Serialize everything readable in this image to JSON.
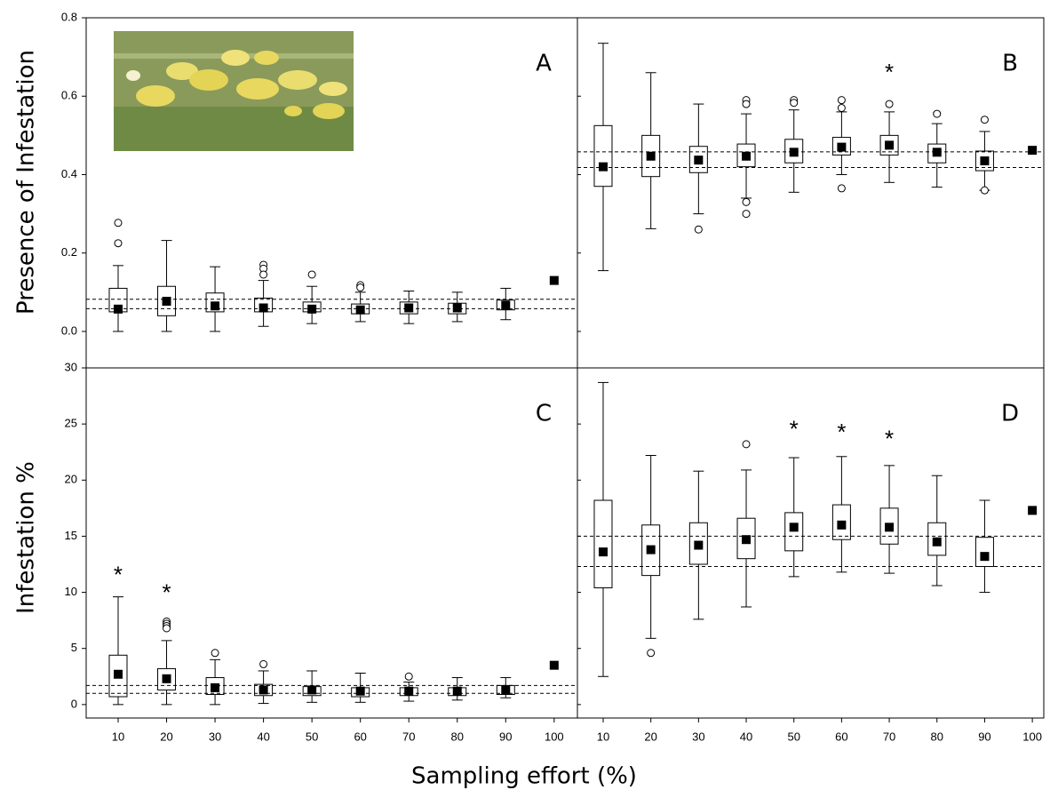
{
  "labels": {
    "x": "Sampling effort (%)",
    "y_top": "Presence of Infestation",
    "y_bottom": "Infestation %"
  },
  "chart_data": [
    {
      "type": "box",
      "title": "A",
      "xlim": [
        3.4,
        104.8
      ],
      "ylim": [
        -0.093,
        0.8
      ],
      "yticks": [
        {
          "value": 0,
          "label": "0.0"
        },
        0.2,
        0.4,
        0.6,
        0.8
      ],
      "x": [
        10,
        20,
        30,
        40,
        50,
        60,
        70,
        80,
        90,
        100
      ],
      "boxes": [
        {
          "min": 0,
          "q1": 0.05,
          "q3": 0.11,
          "max": 0.168,
          "mean": 0.057,
          "outliers": [
            0.277,
            0.225
          ]
        },
        {
          "min": 0,
          "q1": 0.04,
          "q3": 0.115,
          "max": 0.232,
          "mean": 0.077,
          "outliers": []
        },
        {
          "min": 0,
          "q1": 0.05,
          "q3": 0.098,
          "max": 0.165,
          "mean": 0.065,
          "outliers": []
        },
        {
          "min": 0.013,
          "q1": 0.05,
          "q3": 0.085,
          "max": 0.13,
          "mean": 0.06,
          "outliers": [
            0.17,
            0.16,
            0.145
          ]
        },
        {
          "min": 0.02,
          "q1": 0.05,
          "q3": 0.075,
          "max": 0.115,
          "mean": 0.057,
          "outliers": [
            0.145
          ]
        },
        {
          "min": 0.025,
          "q1": 0.045,
          "q3": 0.07,
          "max": 0.1,
          "mean": 0.055,
          "outliers": [
            0.118,
            0.112
          ]
        },
        {
          "min": 0.02,
          "q1": 0.045,
          "q3": 0.075,
          "max": 0.103,
          "mean": 0.06,
          "outliers": []
        },
        {
          "min": 0.025,
          "q1": 0.045,
          "q3": 0.072,
          "max": 0.1,
          "mean": 0.06,
          "outliers": []
        },
        {
          "min": 0.03,
          "q1": 0.055,
          "q3": 0.08,
          "max": 0.11,
          "mean": 0.067,
          "outliers": []
        },
        {
          "mean": 0.13
        }
      ],
      "ref_lines": [
        0.058,
        0.082
      ],
      "annotations": []
    },
    {
      "type": "box",
      "title": "B",
      "xlim": [
        4.6,
        102.4
      ],
      "ylim": [
        -0.093,
        0.8
      ],
      "yticks": [
        0,
        0.2,
        0.4,
        0.6,
        0.8
      ],
      "x": [
        10,
        20,
        30,
        40,
        50,
        60,
        70,
        80,
        90,
        100
      ],
      "boxes": [
        {
          "min": 0.155,
          "q1": 0.37,
          "q3": 0.525,
          "max": 0.735,
          "mean": 0.42,
          "outliers": []
        },
        {
          "min": 0.262,
          "q1": 0.395,
          "q3": 0.5,
          "max": 0.66,
          "mean": 0.447,
          "outliers": []
        },
        {
          "min": 0.3,
          "q1": 0.405,
          "q3": 0.472,
          "max": 0.58,
          "mean": 0.437,
          "outliers": [
            0.26
          ]
        },
        {
          "min": 0.34,
          "q1": 0.42,
          "q3": 0.478,
          "max": 0.555,
          "mean": 0.447,
          "outliers": [
            0.59,
            0.58,
            0.33,
            0.3
          ]
        },
        {
          "min": 0.355,
          "q1": 0.43,
          "q3": 0.49,
          "max": 0.565,
          "mean": 0.457,
          "outliers": [
            0.59,
            0.583
          ]
        },
        {
          "min": 0.4,
          "q1": 0.45,
          "q3": 0.495,
          "max": 0.56,
          "mean": 0.47,
          "outliers": [
            0.59,
            0.57,
            0.365
          ]
        },
        {
          "min": 0.38,
          "q1": 0.45,
          "q3": 0.5,
          "max": 0.56,
          "mean": 0.475,
          "outliers": [
            0.58
          ]
        },
        {
          "min": 0.368,
          "q1": 0.43,
          "q3": 0.478,
          "max": 0.53,
          "mean": 0.457,
          "outliers": [
            0.555
          ]
        },
        {
          "min": 0.36,
          "q1": 0.41,
          "q3": 0.46,
          "max": 0.51,
          "mean": 0.435,
          "outliers": [
            0.54,
            0.36
          ]
        },
        {
          "mean": 0.462
        }
      ],
      "ref_lines": [
        0.418,
        0.458
      ],
      "annotations": [
        {
          "text": "*",
          "x": 70,
          "y": 0.67
        }
      ]
    },
    {
      "type": "box",
      "title": "C",
      "xlim": [
        3.4,
        104.8
      ],
      "ylim": [
        -1.2,
        30
      ],
      "yticks": [
        0,
        5,
        10,
        15,
        20,
        25,
        30
      ],
      "xticks": [
        10,
        20,
        30,
        40,
        50,
        60,
        70,
        80,
        90,
        100
      ],
      "x": [
        10,
        20,
        30,
        40,
        50,
        60,
        70,
        80,
        90,
        100
      ],
      "boxes": [
        {
          "min": 0,
          "q1": 0.7,
          "q3": 4.4,
          "max": 9.6,
          "mean": 2.7,
          "outliers": []
        },
        {
          "min": 0,
          "q1": 1.3,
          "q3": 3.2,
          "max": 5.7,
          "mean": 2.3,
          "outliers": [
            7.4,
            7.2,
            7.0,
            6.8
          ]
        },
        {
          "min": 0,
          "q1": 0.9,
          "q3": 2.4,
          "max": 4.0,
          "mean": 1.5,
          "outliers": [
            4.6
          ]
        },
        {
          "min": 0.1,
          "q1": 0.8,
          "q3": 1.8,
          "max": 3.0,
          "mean": 1.3,
          "outliers": [
            3.6
          ]
        },
        {
          "min": 0.2,
          "q1": 0.8,
          "q3": 1.6,
          "max": 3.0,
          "mean": 1.3,
          "outliers": []
        },
        {
          "min": 0.2,
          "q1": 0.7,
          "q3": 1.5,
          "max": 2.8,
          "mean": 1.2,
          "outliers": []
        },
        {
          "min": 0.3,
          "q1": 0.8,
          "q3": 1.5,
          "max": 2.0,
          "mean": 1.2,
          "outliers": [
            2.5
          ]
        },
        {
          "min": 0.4,
          "q1": 0.8,
          "q3": 1.5,
          "max": 2.4,
          "mean": 1.2,
          "outliers": []
        },
        {
          "min": 0.6,
          "q1": 0.9,
          "q3": 1.7,
          "max": 2.4,
          "mean": 1.3,
          "outliers": []
        },
        {
          "mean": 3.5
        }
      ],
      "ref_lines": [
        1.0,
        1.7
      ],
      "annotations": [
        {
          "text": "*",
          "x": 10,
          "y": 11.9
        },
        {
          "text": "*",
          "x": 20,
          "y": 10.3
        }
      ]
    },
    {
      "type": "box",
      "title": "D",
      "xlim": [
        4.6,
        102.4
      ],
      "ylim": [
        -1.2,
        30
      ],
      "yticks": [
        0,
        5,
        10,
        15,
        20,
        25,
        30
      ],
      "xticks": [
        10,
        20,
        30,
        40,
        50,
        60,
        70,
        80,
        90,
        100
      ],
      "x": [
        10,
        20,
        30,
        40,
        50,
        60,
        70,
        80,
        90,
        100
      ],
      "boxes": [
        {
          "min": 2.5,
          "q1": 10.4,
          "q3": 18.2,
          "max": 28.7,
          "mean": 13.6,
          "outliers": []
        },
        {
          "min": 5.9,
          "q1": 11.5,
          "q3": 16.0,
          "max": 22.2,
          "mean": 13.8,
          "outliers": [
            4.6
          ]
        },
        {
          "min": 7.6,
          "q1": 12.5,
          "q3": 16.2,
          "max": 20.8,
          "mean": 14.2,
          "outliers": []
        },
        {
          "min": 8.7,
          "q1": 13.0,
          "q3": 16.6,
          "max": 20.9,
          "mean": 14.7,
          "outliers": [
            23.2
          ]
        },
        {
          "min": 11.4,
          "q1": 13.7,
          "q3": 17.1,
          "max": 22.0,
          "mean": 15.8,
          "outliers": []
        },
        {
          "min": 11.8,
          "q1": 14.7,
          "q3": 17.8,
          "max": 22.1,
          "mean": 16.0,
          "outliers": []
        },
        {
          "min": 11.7,
          "q1": 14.3,
          "q3": 17.5,
          "max": 21.3,
          "mean": 15.8,
          "outliers": []
        },
        {
          "min": 10.6,
          "q1": 13.3,
          "q3": 16.2,
          "max": 20.4,
          "mean": 14.5,
          "outliers": []
        },
        {
          "min": 10.0,
          "q1": 12.3,
          "q3": 14.9,
          "max": 18.2,
          "mean": 13.2,
          "outliers": []
        },
        {
          "mean": 17.3
        }
      ],
      "ref_lines": [
        12.3,
        15.0
      ],
      "annotations": [
        {
          "text": "*",
          "x": 50,
          "y": 24.9
        },
        {
          "text": "*",
          "x": 60,
          "y": 24.6
        },
        {
          "text": "*",
          "x": 70,
          "y": 24.0
        }
      ]
    }
  ]
}
